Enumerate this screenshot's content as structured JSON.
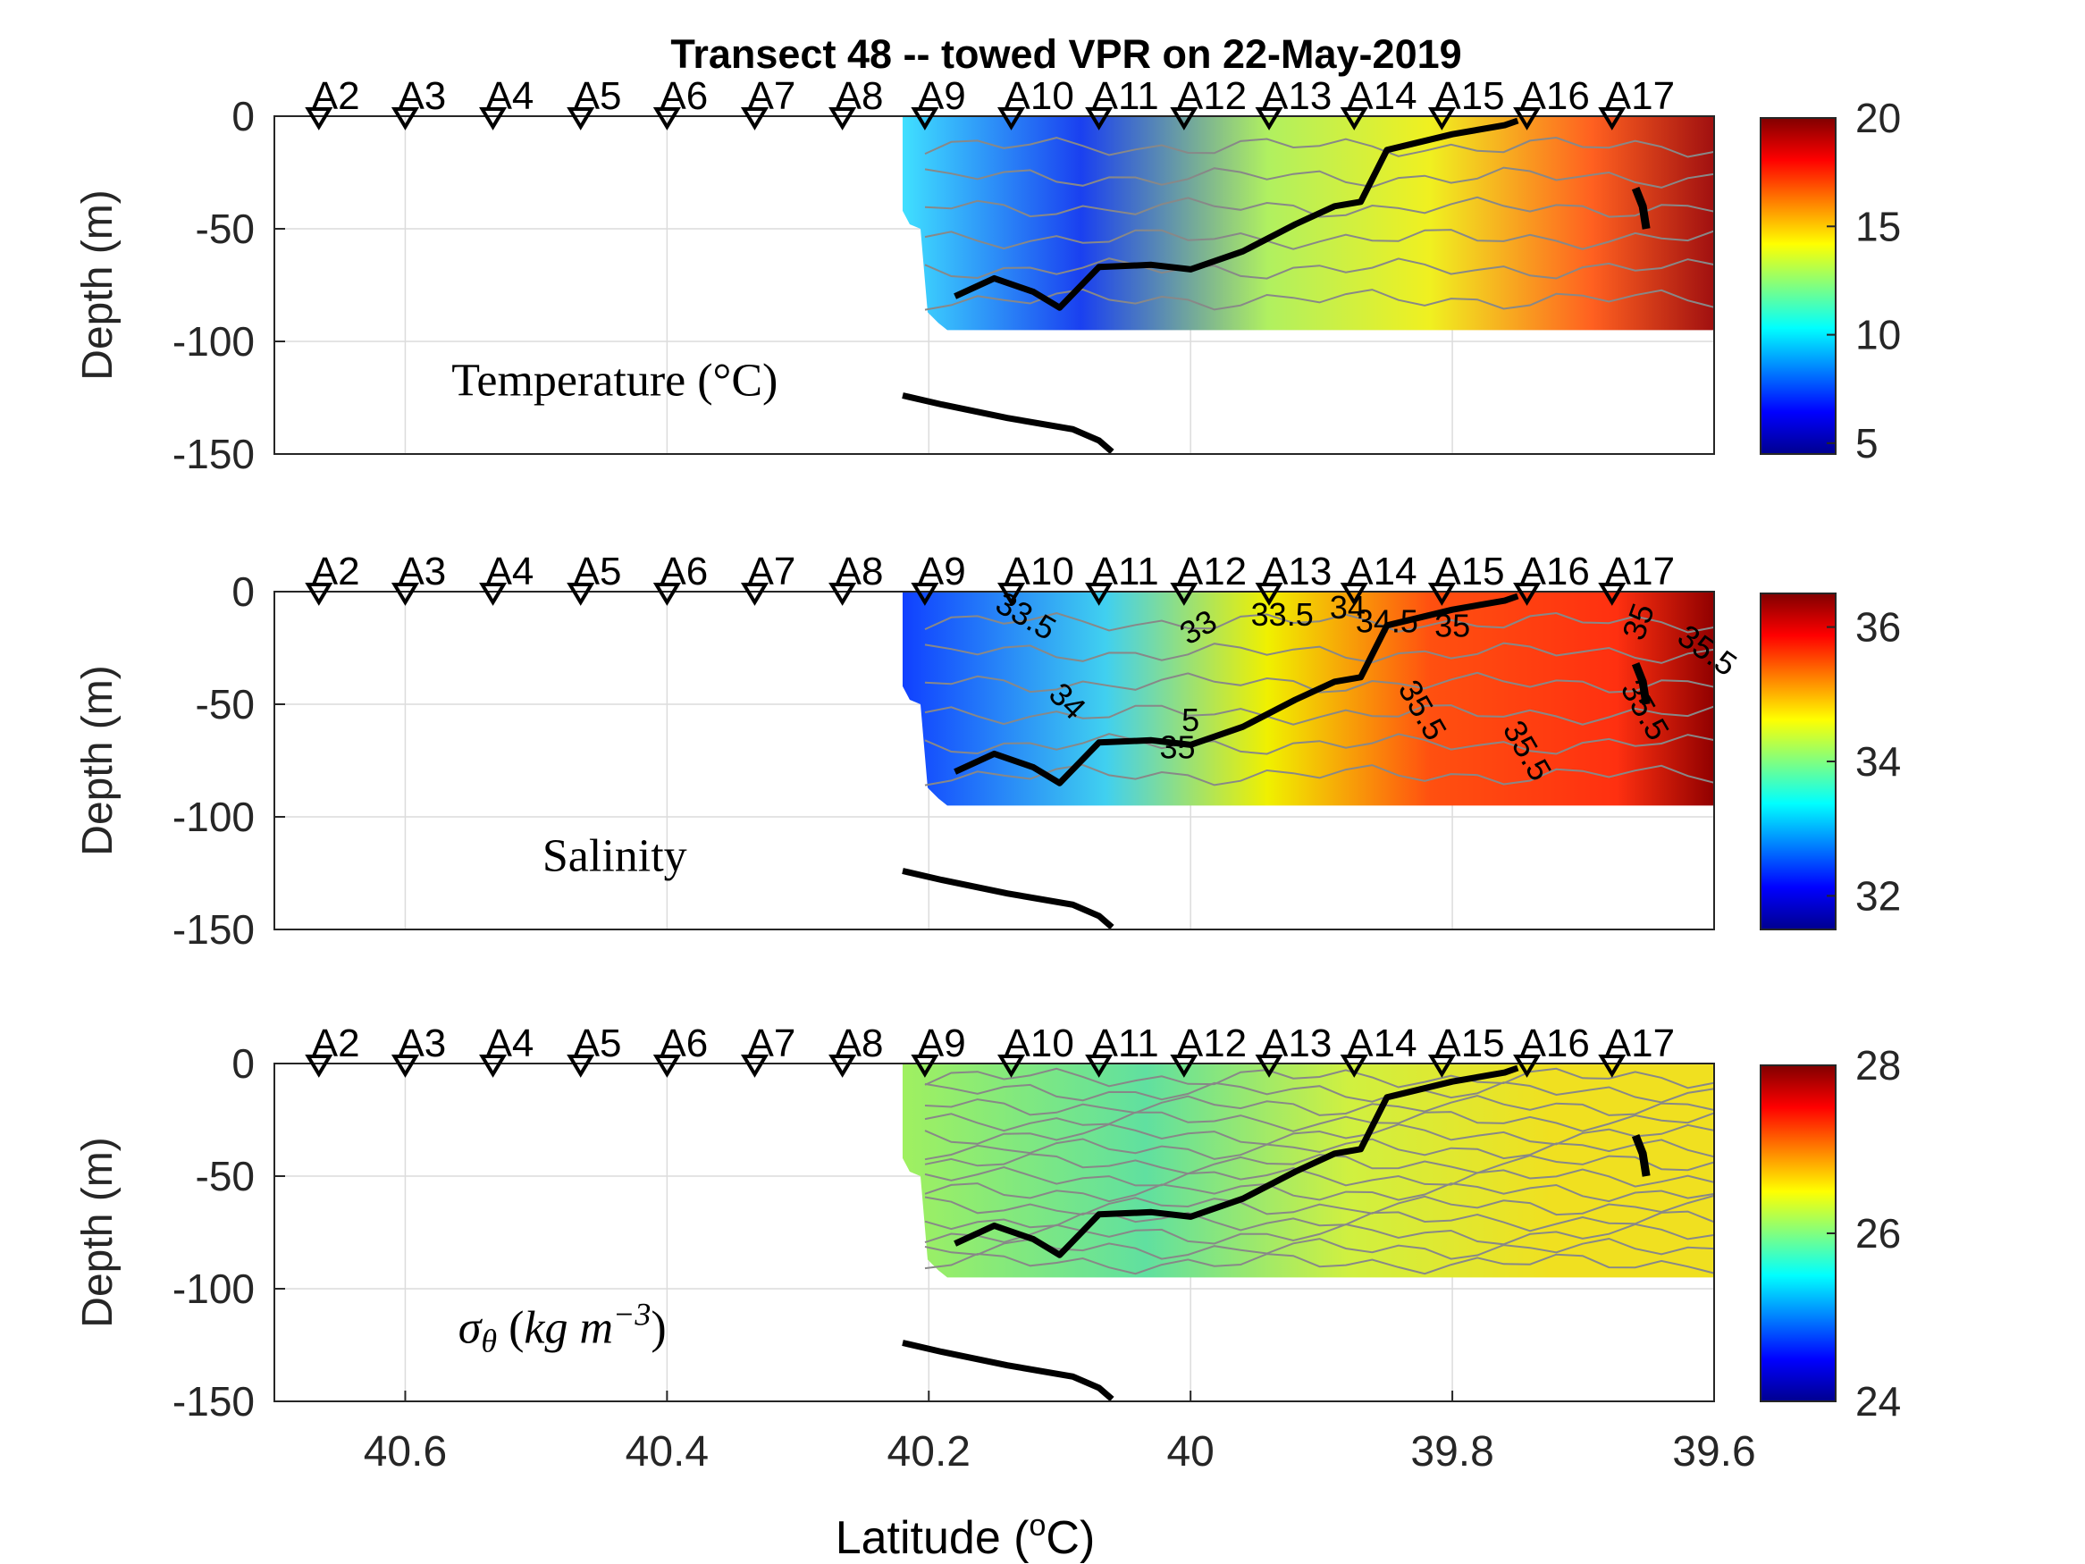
{
  "figure": {
    "title": "Transect 48 -- towed VPR on 22-May-2019",
    "xlabel": "Latitude (",
    "xlabel_unit_sup": "o",
    "xlabel_unit": "C)",
    "xticks": [
      "40.6",
      "40.4",
      "40.2",
      "40",
      "39.8",
      "39.6"
    ]
  },
  "chart_data": [
    {
      "type": "heatmap",
      "panel": "temperature",
      "label": "Temperature (°C)",
      "ylabel": "Depth (m)",
      "ylim": [
        -150,
        0
      ],
      "yticks": [
        "0",
        "-50",
        "-100",
        "-150"
      ],
      "xlim": [
        40.7,
        39.6
      ],
      "xticks": [
        40.6,
        40.4,
        40.2,
        40.0,
        39.8,
        39.6
      ],
      "colorbar": {
        "min": 4.5,
        "max": 20,
        "ticks": [
          "5",
          "10",
          "15",
          "20"
        ],
        "colormap": "jet"
      },
      "stations": [
        "A2",
        "A3",
        "A4",
        "A5",
        "A6",
        "A7",
        "A8",
        "A9",
        "A10",
        "A11",
        "A12",
        "A13",
        "A14",
        "A15",
        "A16",
        "A17"
      ],
      "station_lat": [
        40.666,
        40.6,
        40.533,
        40.466,
        40.4,
        40.333,
        40.266,
        40.203,
        40.137,
        40.07,
        40.005,
        39.94,
        39.875,
        39.808,
        39.743,
        39.678
      ],
      "data_extent_lat": [
        40.22,
        39.6
      ],
      "data_extent_depth": [
        -95,
        0
      ],
      "bottom_line": {
        "lat": [
          40.22,
          40.19,
          40.14,
          40.09,
          40.07,
          40.06
        ],
        "depth": [
          -124,
          -128,
          -134,
          -139,
          -144,
          -149
        ]
      },
      "front_line": {
        "lat": [
          40.18,
          40.15,
          40.12,
          40.1,
          40.07,
          40.03,
          40.0,
          39.96,
          39.92,
          39.89,
          39.87,
          39.85,
          39.8,
          39.76,
          39.75
        ],
        "depth": [
          -80,
          -72,
          -78,
          -85,
          -67,
          -66,
          -68,
          -60,
          -48,
          -40,
          -38,
          -15,
          -8,
          -4,
          -2
        ]
      },
      "isoline_labels": []
    },
    {
      "type": "heatmap",
      "panel": "salinity",
      "label": "Salinity",
      "ylabel": "Depth (m)",
      "ylim": [
        -150,
        0
      ],
      "yticks": [
        "0",
        "-50",
        "-100",
        "-150"
      ],
      "xlim": [
        40.7,
        39.6
      ],
      "xticks": [
        40.6,
        40.4,
        40.2,
        40.0,
        39.8,
        39.6
      ],
      "colorbar": {
        "min": 31.5,
        "max": 36.5,
        "ticks": [
          "32",
          "34",
          "36"
        ],
        "colormap": "jet"
      },
      "stations": [
        "A2",
        "A3",
        "A4",
        "A5",
        "A6",
        "A7",
        "A8",
        "A9",
        "A10",
        "A11",
        "A12",
        "A13",
        "A14",
        "A15",
        "A16",
        "A17"
      ],
      "station_lat": [
        40.666,
        40.6,
        40.533,
        40.466,
        40.4,
        40.333,
        40.266,
        40.203,
        40.137,
        40.07,
        40.005,
        39.94,
        39.875,
        39.808,
        39.743,
        39.678
      ],
      "data_extent_lat": [
        40.22,
        39.6
      ],
      "data_extent_depth": [
        -95,
        0
      ],
      "bottom_line": {
        "lat": [
          40.22,
          40.19,
          40.14,
          40.09,
          40.07,
          40.06
        ],
        "depth": [
          -124,
          -128,
          -134,
          -139,
          -144,
          -149
        ]
      },
      "front_line": {
        "lat": [
          40.18,
          40.15,
          40.12,
          40.1,
          40.07,
          40.03,
          40.0,
          39.96,
          39.92,
          39.89,
          39.87,
          39.85,
          39.8,
          39.76,
          39.75
        ],
        "depth": [
          -80,
          -72,
          -78,
          -85,
          -67,
          -66,
          -68,
          -60,
          -48,
          -40,
          -38,
          -15,
          -8,
          -4,
          -2
        ]
      },
      "isoline_labels": [
        {
          "text": "33.5",
          "lat": 40.13,
          "depth": -15,
          "rot": 30
        },
        {
          "text": "33",
          "lat": 39.99,
          "depth": -20,
          "rot": -30
        },
        {
          "text": "33.5",
          "lat": 39.93,
          "depth": -15,
          "rot": 0
        },
        {
          "text": "34",
          "lat": 39.88,
          "depth": -12,
          "rot": 0
        },
        {
          "text": "34.5",
          "lat": 39.85,
          "depth": -18,
          "rot": 0
        },
        {
          "text": "35",
          "lat": 39.8,
          "depth": -20,
          "rot": 0
        },
        {
          "text": "35",
          "lat": 39.65,
          "depth": -15,
          "rot": -70
        },
        {
          "text": "35.5",
          "lat": 39.61,
          "depth": -30,
          "rot": 35
        },
        {
          "text": "34",
          "lat": 40.1,
          "depth": -52,
          "rot": 45
        },
        {
          "text": "35.5",
          "lat": 39.83,
          "depth": -55,
          "rot": 60
        },
        {
          "text": "35.5",
          "lat": 39.75,
          "depth": -73,
          "rot": 60
        },
        {
          "text": "35.5",
          "lat": 39.66,
          "depth": -55,
          "rot": 60
        },
        {
          "text": "5",
          "lat": 40.0,
          "depth": -62,
          "rot": 0
        },
        {
          "text": "35",
          "lat": 40.01,
          "depth": -74,
          "rot": 0
        }
      ]
    },
    {
      "type": "heatmap",
      "panel": "density",
      "label": "σθ (kg m⁻³)",
      "label_parts": {
        "sigma": "σ",
        "sub": "θ",
        "open": " (",
        "unit": "kg m",
        "sup": "−3",
        "close": ")"
      },
      "ylabel": "Depth (m)",
      "ylim": [
        -150,
        0
      ],
      "yticks": [
        "0",
        "-50",
        "-100",
        "-150"
      ],
      "xlim": [
        40.7,
        39.6
      ],
      "xticks": [
        40.6,
        40.4,
        40.2,
        40.0,
        39.8,
        39.6
      ],
      "colorbar": {
        "min": 24,
        "max": 28,
        "ticks": [
          "24",
          "26",
          "28"
        ],
        "colormap": "jet"
      },
      "stations": [
        "A2",
        "A3",
        "A4",
        "A5",
        "A6",
        "A7",
        "A8",
        "A9",
        "A10",
        "A11",
        "A12",
        "A13",
        "A14",
        "A15",
        "A16",
        "A17"
      ],
      "station_lat": [
        40.666,
        40.6,
        40.533,
        40.466,
        40.4,
        40.333,
        40.266,
        40.203,
        40.137,
        40.07,
        40.005,
        39.94,
        39.875,
        39.808,
        39.743,
        39.678
      ],
      "data_extent_lat": [
        40.22,
        39.6
      ],
      "data_extent_depth": [
        -95,
        0
      ],
      "bottom_line": {
        "lat": [
          40.22,
          40.19,
          40.14,
          40.09,
          40.07,
          40.06
        ],
        "depth": [
          -124,
          -128,
          -134,
          -139,
          -144,
          -149
        ]
      },
      "front_line": {
        "lat": [
          40.18,
          40.15,
          40.12,
          40.1,
          40.07,
          40.03,
          40.0,
          39.96,
          39.92,
          39.89,
          39.87,
          39.85,
          39.8,
          39.76,
          39.75
        ],
        "depth": [
          -80,
          -72,
          -78,
          -85,
          -67,
          -66,
          -68,
          -60,
          -48,
          -40,
          -38,
          -15,
          -8,
          -4,
          -2
        ]
      },
      "isoline_labels": []
    }
  ]
}
